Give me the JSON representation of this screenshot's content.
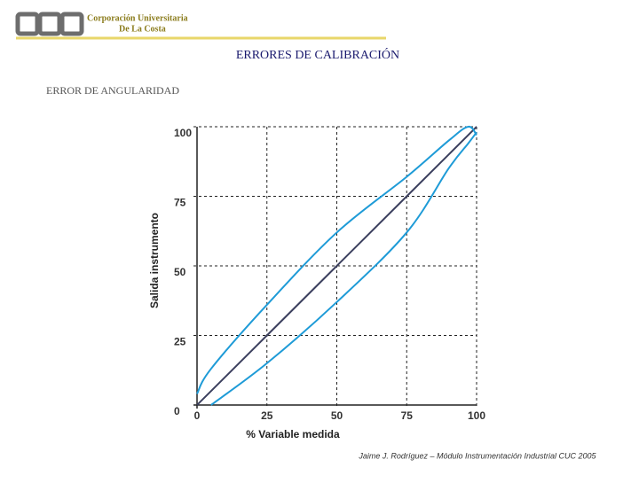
{
  "header": {
    "logo_lines": [
      "Corporación Universitaria",
      "De La Costa"
    ]
  },
  "footer": "Jaime J. Rodríguez – Módulo Instrumentación Industrial  CUC 2005",
  "chart_data": {
    "type": "line",
    "title": "ERRORES DE CALIBRACIÓN",
    "subtitle": "ERROR DE ANGULARIDAD",
    "x_label": "% Variable medida",
    "y_label": "Salida instrumento",
    "x": [
      0,
      5,
      25,
      50,
      75,
      90,
      97,
      100
    ],
    "series": [
      {
        "color": "#3b3f5e",
        "values": [
          0,
          5,
          25,
          50,
          75,
          90,
          97,
          100
        ]
      },
      {
        "color": "#1e9bd7",
        "values": [
          4,
          13,
          36,
          62,
          82,
          95,
          100,
          97
        ]
      },
      {
        "color": "#1e9bd7",
        "values": [
          null,
          0,
          15,
          37,
          62,
          85,
          94,
          98
        ]
      }
    ],
    "xlim": [
      0,
      100
    ],
    "ylim": [
      0,
      100
    ],
    "xticks": [
      0,
      25,
      50,
      75,
      100
    ],
    "yticks": [
      0,
      25,
      50,
      75,
      100
    ],
    "grid": true
  }
}
